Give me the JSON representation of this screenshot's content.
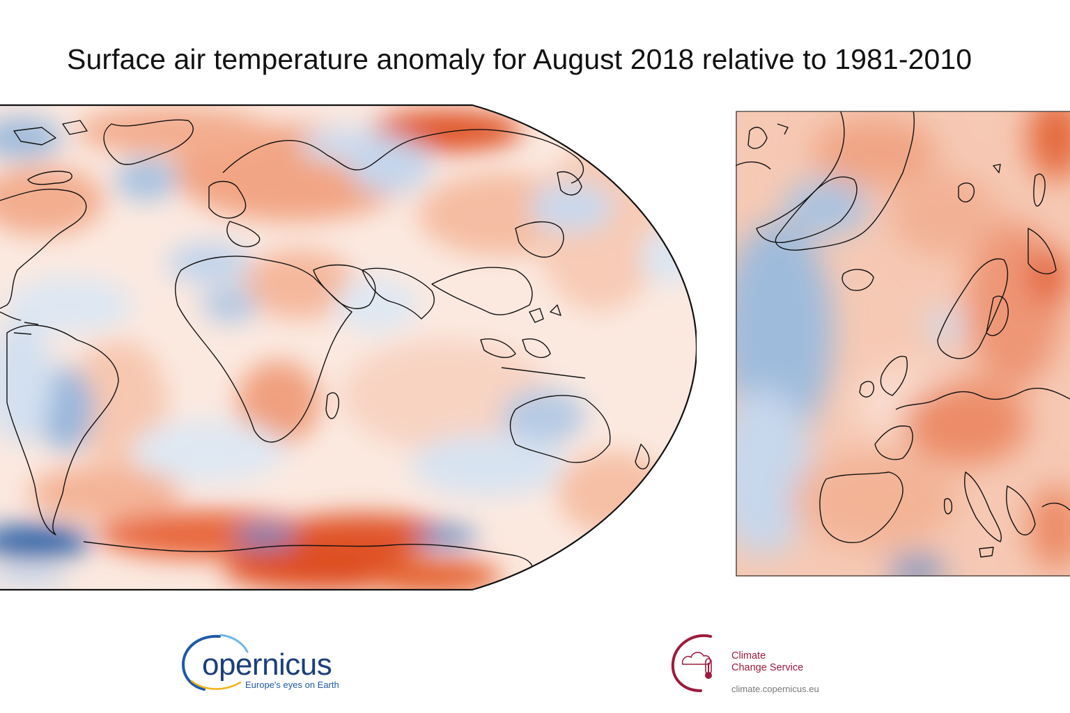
{
  "title": "Surface air temperature anomaly for August 2018 relative to 1981-2010",
  "colors": {
    "warm_strong": "#d8461c",
    "warm_mid": "#ef9a7a",
    "warm_light": "#f9d8c8",
    "neutral": "#fbf0ec",
    "cool_light": "#dbe6f2",
    "cool_mid": "#9fbbdc",
    "cool_strong": "#2f63a8",
    "coastline": "#111111"
  },
  "logos": {
    "copernicus": {
      "wordmark": "opernicus",
      "tagline": "Europe's eyes on Earth"
    },
    "c3s": {
      "name_line1": "Climate",
      "name_line2": "Change Service",
      "url": "climate.copernicus.eu"
    }
  }
}
